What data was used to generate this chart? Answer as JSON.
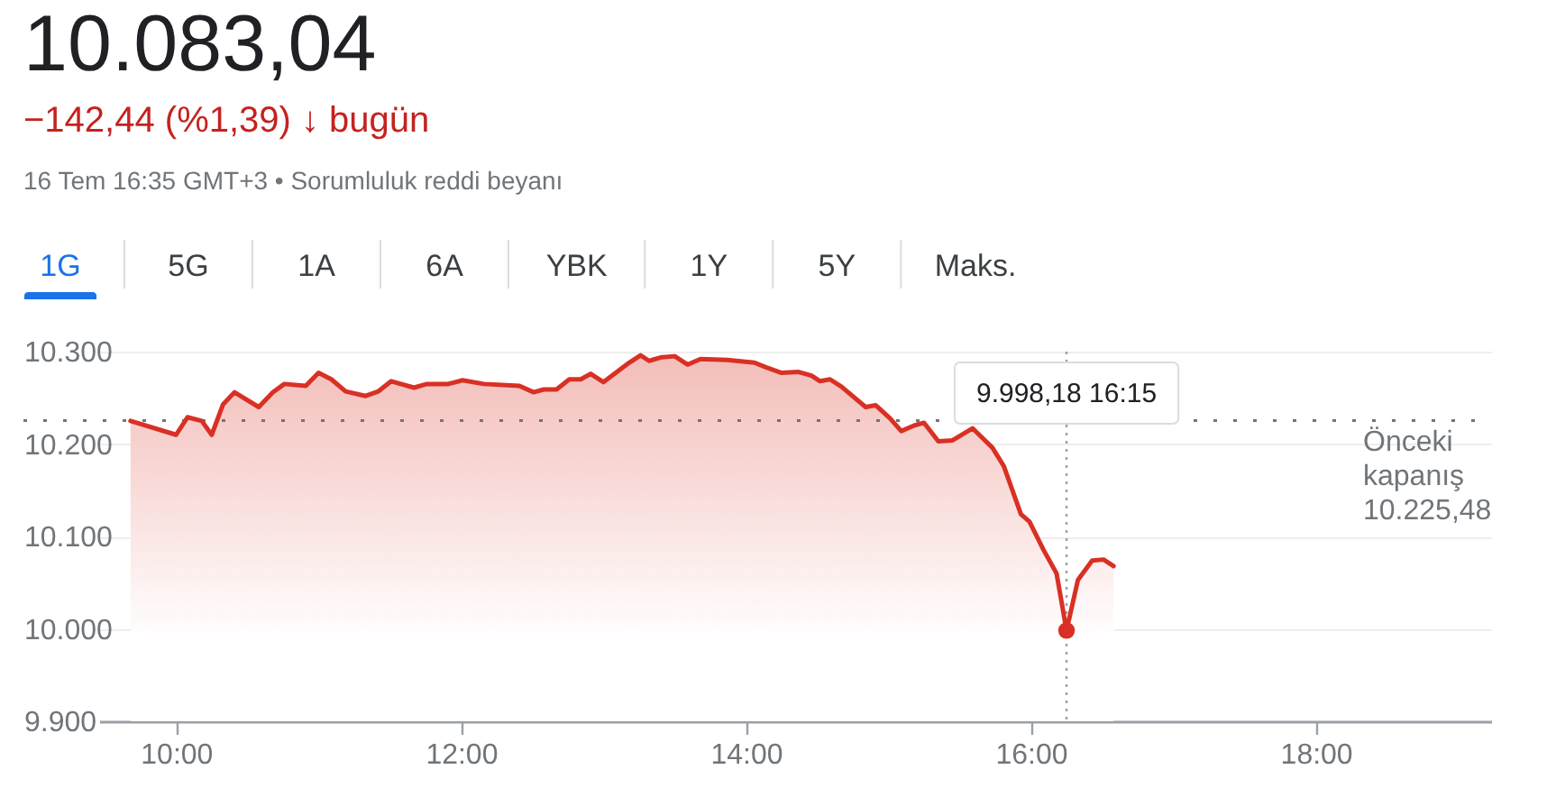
{
  "chart_data": {
    "type": "area",
    "title": "10.083,04",
    "subtitle": "−142,44 (%1,39) ↓ bugün",
    "annotations": [
      "16 Tem 16:35 GMT+3 • Sorumluluk reddi beyanı",
      "1G",
      "5G",
      "1A",
      "6A",
      "YBK",
      "1Y",
      "5Y",
      "Maks."
    ],
    "x": [
      9.68,
      10.0,
      10.08,
      10.18,
      10.25,
      10.33,
      10.41,
      10.58,
      10.68,
      10.76,
      10.91,
      11.0,
      11.09,
      11.19,
      11.33,
      11.42,
      11.51,
      11.67,
      11.76,
      11.91,
      12.01,
      12.16,
      12.41,
      12.51,
      12.58,
      12.67,
      12.76,
      12.84,
      12.91,
      13.0,
      13.18,
      13.26,
      13.32,
      13.41,
      13.5,
      13.59,
      13.68,
      13.87,
      14.06,
      14.14,
      14.25,
      14.37,
      14.46,
      14.52,
      14.59,
      14.67,
      14.84,
      14.91,
      15.01,
      15.09,
      15.18,
      15.25,
      15.35,
      15.45,
      15.59,
      15.73,
      15.81,
      15.93,
      15.99,
      16.09,
      16.18,
      16.25,
      16.33,
      16.43,
      16.51,
      16.58
    ],
    "series": [
      {
        "color": "#d93025",
        "values": [
          10225,
          10210,
          10229,
          10225,
          10210,
          10243,
          10256,
          10240,
          10256,
          10265,
          10263,
          10277,
          10270,
          10257,
          10252,
          10257,
          10268,
          10261,
          10265,
          10265,
          10269,
          10265,
          10263,
          10256,
          10259,
          10259,
          10270,
          10270,
          10276,
          10267,
          10288,
          10296,
          10290,
          10294,
          10295,
          10286,
          10292,
          10291,
          10288,
          10283,
          10277,
          10278,
          10274,
          10268,
          10270,
          10262,
          10240,
          10242,
          10228,
          10214,
          10220,
          10223,
          10203,
          10204,
          10217,
          10196,
          10176,
          10124,
          10116,
          10085,
          10060,
          9998.18,
          10053,
          10074,
          10075,
          10068
        ]
      },
      {
        "type": "scatter",
        "color": "#d93025",
        "x": [
          16.25
        ],
        "values": [
          9998.18
        ]
      }
    ],
    "xlim": [
      9.46,
      19.23
    ],
    "xticks": [
      {
        "value": 10,
        "label": "10:00"
      },
      {
        "value": 12,
        "label": "12:00"
      },
      {
        "value": 14,
        "label": "14:00"
      },
      {
        "value": 16,
        "label": "16:00"
      },
      {
        "value": 18,
        "label": "18:00"
      }
    ],
    "ylim": [
      9900,
      10300
    ],
    "yticks": [
      {
        "value": 9900,
        "label": "9.900"
      },
      {
        "value": 10000,
        "label": "10.000"
      },
      {
        "value": 10100,
        "label": "10.100"
      },
      {
        "value": 10200,
        "label": "10.200"
      },
      {
        "value": 10300,
        "label": "10.300"
      }
    ],
    "grid": "y",
    "ref_lines": [
      {
        "axis": "y",
        "value": 10225.48,
        "label": "Önceki kapanış 10.225,48",
        "line_style": "dotted",
        "color": "#70757a"
      },
      {
        "axis": "x",
        "value": 16.25,
        "label": "9.998,18 16:15",
        "line_style": "dotted",
        "color": "#9aa0a6"
      }
    ]
  }
}
